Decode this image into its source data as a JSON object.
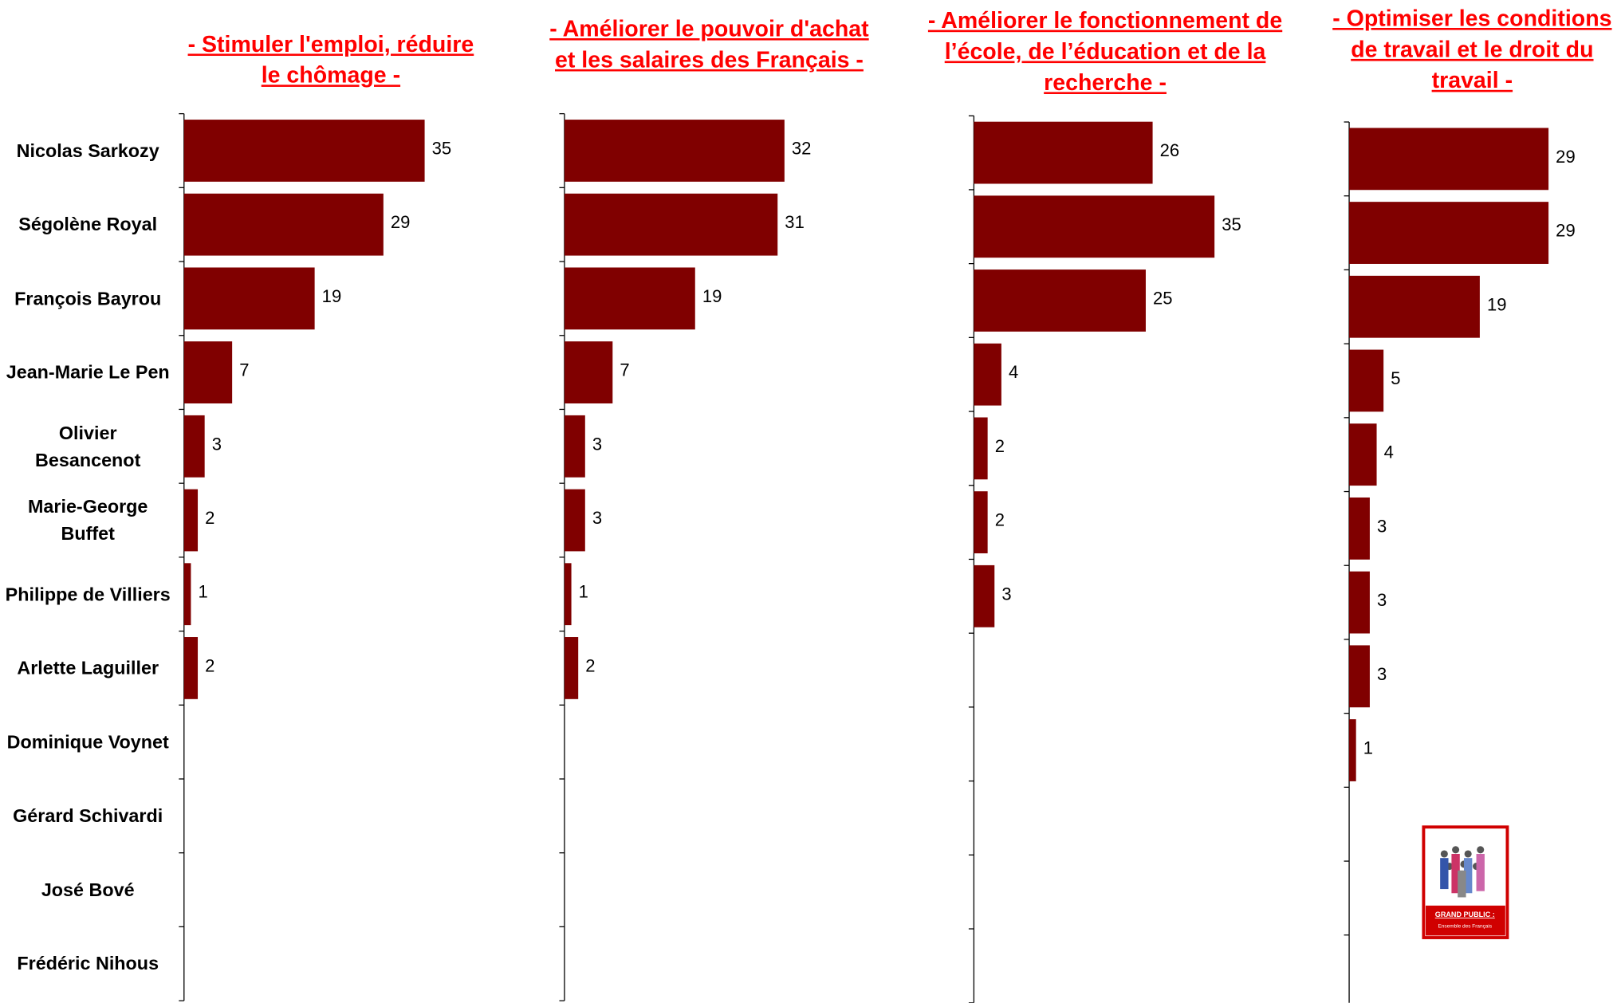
{
  "chart_data": [
    {
      "type": "bar",
      "title": "- Stimuler l'emploi, réduire le chômage -",
      "color": "#800000",
      "categories": [
        "Nicolas Sarkozy",
        "Ségolène Royal",
        "François Bayrou",
        "Jean-Marie Le Pen",
        "Olivier Besancenot",
        "Marie-George Buffet",
        "Philippe de Villiers",
        "Arlette Laguiller",
        "Dominique Voynet",
        "Gérard Schivardi",
        "José Bové",
        "Frédéric Nihous"
      ],
      "values": [
        35,
        29,
        19,
        7,
        3,
        2,
        1,
        2,
        null,
        null,
        null,
        null
      ]
    },
    {
      "type": "bar",
      "title": "- Améliorer le pouvoir d'achat et les salaires des Français -",
      "color": "#800000",
      "values": [
        32,
        31,
        19,
        7,
        3,
        3,
        1,
        2,
        null,
        null,
        null,
        null
      ]
    },
    {
      "type": "bar",
      "title": "- Améliorer le fonctionnement de l’école, de l’éducation et de la recherche -",
      "color": "#800000",
      "values": [
        26,
        35,
        25,
        4,
        2,
        2,
        3,
        null,
        null,
        null,
        null,
        null
      ]
    },
    {
      "type": "bar",
      "title": "- Optimiser les conditions de travail et le droit du travail -",
      "color": "#800000",
      "values": [
        29,
        29,
        19,
        5,
        4,
        3,
        3,
        3,
        1,
        null,
        null,
        null
      ]
    }
  ],
  "logo": {
    "title": "GRAND PUBLIC :",
    "subtitle": "Ensemble des Français"
  }
}
